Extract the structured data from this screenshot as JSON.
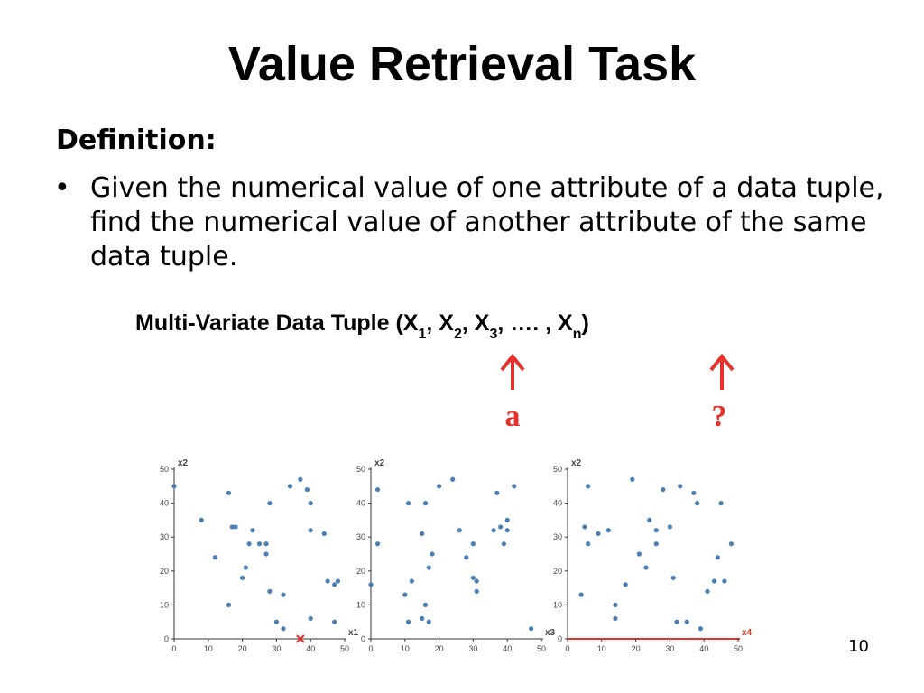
{
  "title": "Value Retrieval Task",
  "definition_heading": "Definition:",
  "bullet": "Given the numerical value of one attribute of a data tuple, find the numerical value of another attribute of the same data tuple.",
  "tuple_parts": [
    "Multi-Variate Data Tuple (X",
    "1",
    ", X",
    "2",
    ", X",
    "3",
    ", …. , X",
    "n",
    ")"
  ],
  "arrow_labels": [
    "a",
    "?"
  ],
  "page_number": "10",
  "chart_data": [
    {
      "type": "scatter",
      "x_label": "x1",
      "y_label": "x2",
      "color": "#4a7fb5",
      "xlim": [
        0,
        50
      ],
      "ylim": [
        0,
        50
      ],
      "xticks": [
        0,
        10,
        20,
        30,
        40,
        50
      ],
      "yticks": [
        0,
        10,
        20,
        30,
        40,
        50
      ],
      "marker_x": 37,
      "marker_color": "#e8312a",
      "x": [
        0,
        8,
        12,
        16,
        17,
        18,
        16,
        20,
        21,
        22,
        23,
        25,
        27,
        27,
        28,
        28,
        30,
        32,
        32,
        34,
        37,
        39,
        40,
        40,
        40,
        44,
        45,
        47,
        48,
        47
      ],
      "y": [
        45,
        35,
        24,
        43,
        33,
        33,
        10,
        18,
        21,
        28,
        32,
        28,
        28,
        25,
        40,
        14,
        5,
        3,
        13,
        45,
        47,
        44,
        40,
        32,
        6,
        31,
        17,
        16,
        17,
        5
      ]
    },
    {
      "type": "scatter",
      "x_label": "x3",
      "y_label": "x2",
      "color": "#4a7fb5",
      "xlim": [
        0,
        50
      ],
      "ylim": [
        0,
        50
      ],
      "xticks": [
        0,
        10,
        20,
        30,
        40,
        50
      ],
      "yticks": [
        0,
        10,
        20,
        30,
        40,
        50
      ],
      "x": [
        0,
        2,
        2,
        10,
        11,
        11,
        12,
        15,
        15,
        16,
        16,
        17,
        17,
        18,
        20,
        24,
        26,
        28,
        30,
        30,
        31,
        31,
        36,
        37,
        38,
        39,
        40,
        40,
        42,
        47
      ],
      "y": [
        16,
        44,
        28,
        13,
        40,
        5,
        17,
        31,
        6,
        40,
        10,
        21,
        5,
        25,
        45,
        47,
        32,
        24,
        28,
        18,
        17,
        14,
        32,
        43,
        33,
        28,
        35,
        32,
        45,
        3
      ]
    },
    {
      "type": "scatter",
      "x_label": "x4",
      "y_label": "x2",
      "color": "#4a7fb5",
      "xlim": [
        0,
        50
      ],
      "ylim": [
        0,
        50
      ],
      "xticks": [
        0,
        10,
        20,
        30,
        40,
        50
      ],
      "yticks": [
        0,
        10,
        20,
        30,
        40,
        50
      ],
      "highlight_x_axis": "#e8312a",
      "x": [
        4,
        5,
        6,
        6,
        9,
        12,
        14,
        14,
        17,
        19,
        21,
        23,
        24,
        26,
        26,
        28,
        30,
        31,
        32,
        33,
        35,
        37,
        38,
        39,
        41,
        43,
        44,
        45,
        46,
        48
      ],
      "y": [
        13,
        33,
        45,
        28,
        31,
        32,
        10,
        6,
        16,
        47,
        25,
        21,
        35,
        28,
        32,
        44,
        33,
        18,
        5,
        45,
        5,
        43,
        40,
        3,
        14,
        17,
        24,
        40,
        17,
        28
      ]
    }
  ]
}
